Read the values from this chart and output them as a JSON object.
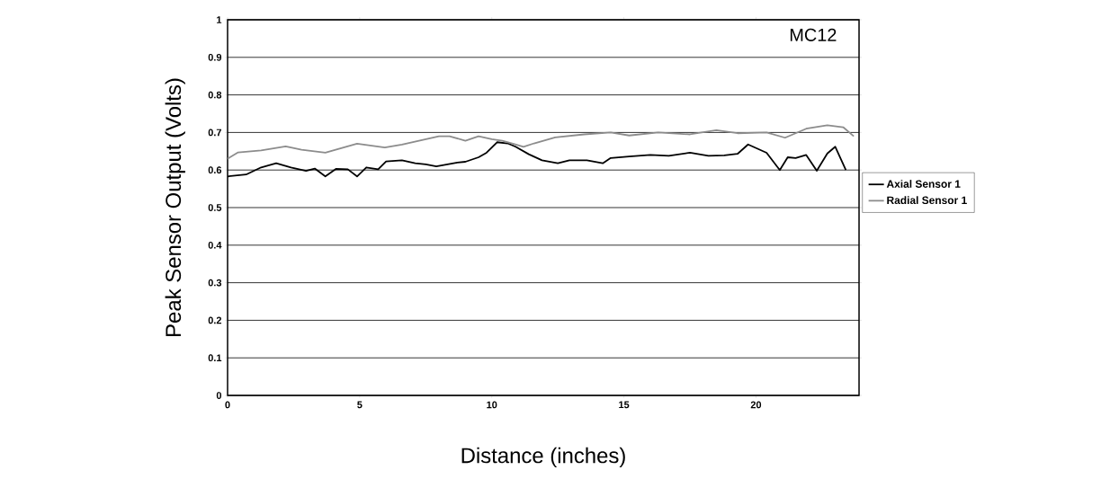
{
  "chart_data": {
    "type": "line",
    "xlabel": "Distance (inches)",
    "ylabel": "Peak Sensor Output (Volts)",
    "annotations": [
      "MC12"
    ],
    "xlim": [
      0,
      23.9
    ],
    "xticks": [
      0,
      5,
      10,
      15,
      20
    ],
    "ylim": [
      0,
      1
    ],
    "yticks": [
      0,
      0.1,
      0.2,
      0.3,
      0.4,
      0.5,
      0.6,
      0.7,
      0.8,
      0.9,
      1
    ],
    "grid": "y",
    "legend": "right",
    "marker": "none",
    "series": [
      {
        "name": "Axial Sensor 1",
        "color": "#000000",
        "x": [
          0,
          0.7,
          1.27,
          1.84,
          2.4,
          2.97,
          3.3,
          3.7,
          4.1,
          4.55,
          4.9,
          5.25,
          5.7,
          6.0,
          6.6,
          7.1,
          7.5,
          7.9,
          8.7,
          9.0,
          9.5,
          9.8,
          10.2,
          10.6,
          10.9,
          11.4,
          11.9,
          12.5,
          12.94,
          13.6,
          14.2,
          14.5,
          15.2,
          16.0,
          16.7,
          17.5,
          18.2,
          18.8,
          19.3,
          19.7,
          20.4,
          20.9,
          21.2,
          21.5,
          21.9,
          22.3,
          22.7,
          23.0,
          23.4
        ],
        "values": [
          0.583,
          0.588,
          0.607,
          0.618,
          0.607,
          0.598,
          0.604,
          0.583,
          0.603,
          0.602,
          0.583,
          0.607,
          0.602,
          0.623,
          0.626,
          0.618,
          0.615,
          0.61,
          0.62,
          0.622,
          0.634,
          0.646,
          0.674,
          0.671,
          0.662,
          0.642,
          0.626,
          0.618,
          0.626,
          0.626,
          0.618,
          0.632,
          0.636,
          0.64,
          0.638,
          0.646,
          0.638,
          0.639,
          0.643,
          0.668,
          0.646,
          0.6,
          0.634,
          0.632,
          0.64,
          0.598,
          0.644,
          0.662,
          0.6
        ]
      },
      {
        "name": "Radial Sensor 1",
        "color": "#8c8c8c",
        "x": [
          0,
          0.4,
          1.27,
          2.2,
          2.8,
          3.7,
          4.9,
          5.95,
          6.6,
          8.0,
          8.4,
          9.0,
          9.5,
          10.0,
          10.4,
          10.8,
          11.2,
          11.6,
          12.4,
          13.5,
          14.5,
          15.2,
          16.3,
          17.5,
          18.5,
          19.3,
          20.4,
          21.1,
          21.9,
          22.7,
          23.3,
          23.7
        ],
        "values": [
          0.63,
          0.647,
          0.652,
          0.663,
          0.654,
          0.646,
          0.67,
          0.66,
          0.668,
          0.69,
          0.69,
          0.678,
          0.69,
          0.682,
          0.678,
          0.67,
          0.662,
          0.671,
          0.687,
          0.695,
          0.7,
          0.692,
          0.7,
          0.695,
          0.706,
          0.698,
          0.7,
          0.686,
          0.71,
          0.719,
          0.714,
          0.69
        ]
      }
    ]
  }
}
